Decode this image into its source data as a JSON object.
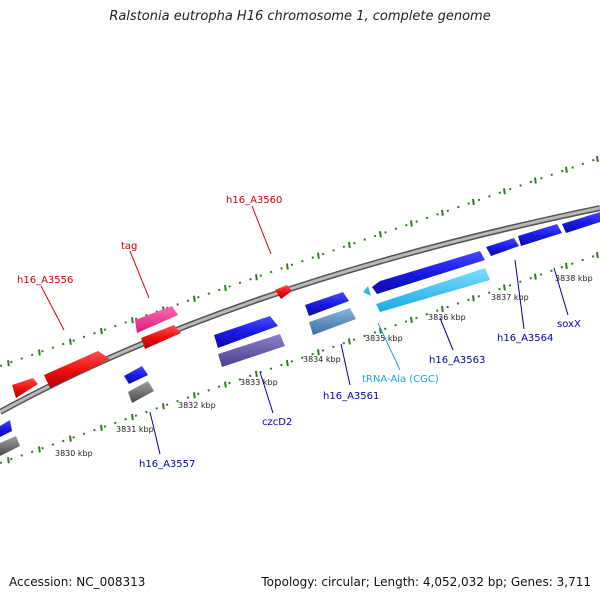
{
  "title": "Ralstonia eutropha H16 chromosome 1, complete genome",
  "footer": {
    "accession": "Accession: NC_008313",
    "topology": "Topology: circular; Length: 4,052,032 bp; Genes: 3,711"
  },
  "colors": {
    "forward_label": "#cc0000",
    "reverse_label": "#0000aa",
    "rna_label": "#1fa3d6",
    "tick": "#2e7d1e",
    "backbone": "#8a8a8a"
  },
  "kbp_ticks": [
    {
      "label": "3830 kbp",
      "kbp": 3830
    },
    {
      "label": "3831 kbp",
      "kbp": 3831
    },
    {
      "label": "3832 kbp",
      "kbp": 3832
    },
    {
      "label": "3833 kbp",
      "kbp": 3833
    },
    {
      "label": "3834 kbp",
      "kbp": 3834
    },
    {
      "label": "3835 kbp",
      "kbp": 3835
    },
    {
      "label": "3836 kbp",
      "kbp": 3836
    },
    {
      "label": "3837 kbp",
      "kbp": 3837
    },
    {
      "label": "3838 kbp",
      "kbp": 3838
    }
  ],
  "gene_labels": [
    {
      "name": "h16_A3556",
      "strand": "forward"
    },
    {
      "name": "tag",
      "strand": "forward"
    },
    {
      "name": "h16_A3560",
      "strand": "forward"
    },
    {
      "name": "h16_A3557",
      "strand": "reverse"
    },
    {
      "name": "czcD2",
      "strand": "reverse"
    },
    {
      "name": "h16_A3561",
      "strand": "reverse"
    },
    {
      "name": "tRNA-Ala (CGC)",
      "strand": "rna"
    },
    {
      "name": "h16_A3563",
      "strand": "reverse"
    },
    {
      "name": "h16_A3564",
      "strand": "reverse"
    },
    {
      "name": "soxX",
      "strand": "reverse"
    }
  ]
}
